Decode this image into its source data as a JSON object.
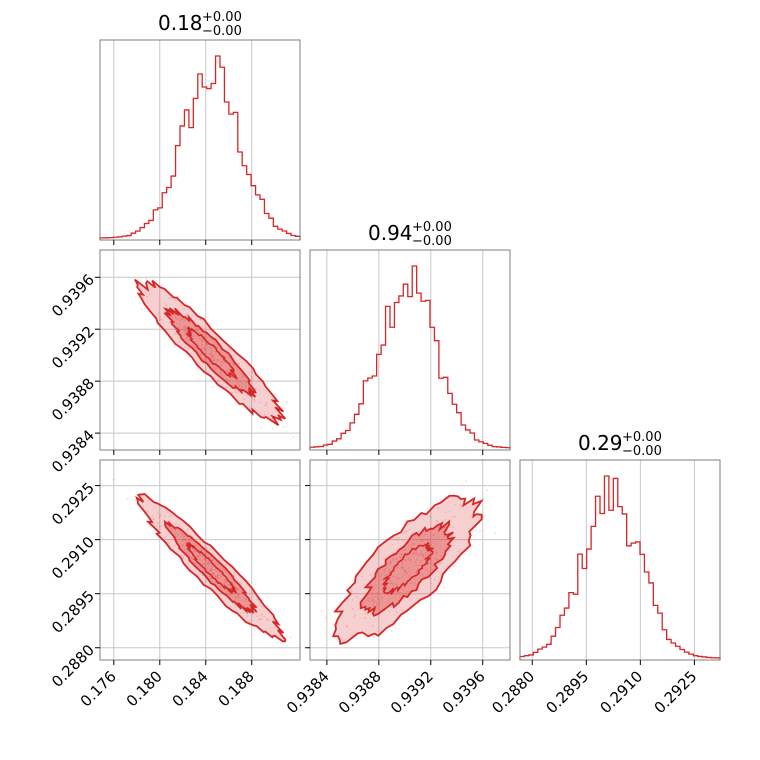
{
  "accent_color": "#d62728",
  "chart_data": {
    "type": "corner",
    "parameters": [
      {
        "title": {
          "value": "0.18",
          "upper": "+0.00",
          "lower": "−0.00"
        },
        "range": [
          0.1748,
          0.1922
        ],
        "ticks": [
          0.176,
          0.18,
          0.184,
          0.188
        ],
        "tick_labels": [
          "0.176",
          "0.180",
          "0.184",
          "0.188"
        ],
        "hist_centers": [
          0.184,
          0.1849
        ],
        "hist_sigma": 0.0025,
        "hist_bins": 45
      },
      {
        "title": {
          "value": "0.94",
          "upper": "+0.00",
          "lower": "−0.00"
        },
        "range": [
          0.93827,
          0.93981
        ],
        "ticks": [
          0.9384,
          0.9388,
          0.9392,
          0.9396
        ],
        "tick_labels": [
          "0.9384",
          "0.9388",
          "0.9392",
          "0.9396"
        ],
        "hist_centers": [
          0.939,
          0.93904
        ],
        "hist_sigma": 0.00022,
        "hist_bins": 45
      },
      {
        "title": {
          "value": "0.29",
          "upper": "+0.00",
          "lower": "−0.00"
        },
        "range": [
          0.28766,
          0.29321
        ],
        "ticks": [
          0.288,
          0.2895,
          0.291,
          0.2925
        ],
        "tick_labels": [
          "0.2880",
          "0.2895",
          "0.2910",
          "0.2925"
        ],
        "hist_centers": [
          0.29,
          0.2904
        ],
        "hist_sigma": 0.0008,
        "hist_bins": 45
      }
    ],
    "correlations": [
      {
        "row": 1,
        "col": 0,
        "rho": -0.93
      },
      {
        "row": 2,
        "col": 0,
        "rho": -0.95
      },
      {
        "row": 2,
        "col": 1,
        "rho": 0.78
      }
    ],
    "contour_levels_sigma": [
      1,
      2
    ],
    "grid": true
  }
}
